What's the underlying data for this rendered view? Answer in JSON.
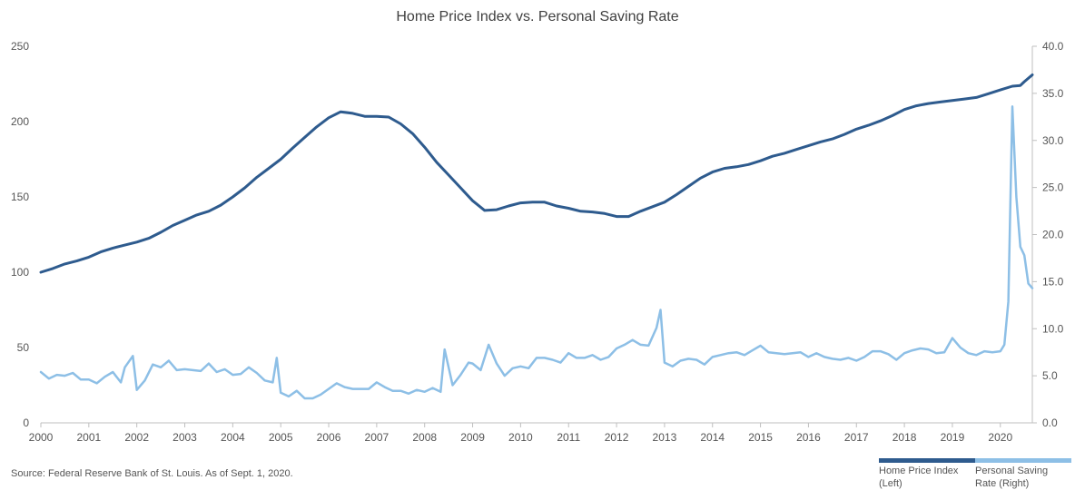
{
  "chart_data": {
    "type": "line",
    "title": "Home Price Index vs. Personal Saving Rate",
    "source": "Source: Federal Reserve Bank of St. Louis. As of Sept. 1, 2020.",
    "x_ticks": [
      "2000",
      "2001",
      "2002",
      "2003",
      "2004",
      "2005",
      "2006",
      "2007",
      "2008",
      "2009",
      "2010",
      "2011",
      "2012",
      "2013",
      "2014",
      "2015",
      "2016",
      "2017",
      "2018",
      "2019",
      "2020"
    ],
    "x_range": [
      "2000-01",
      "2020-09"
    ],
    "y_left": {
      "ticks": [
        "0",
        "50",
        "100",
        "150",
        "200",
        "250"
      ],
      "range": [
        0,
        250
      ]
    },
    "y_right": {
      "ticks": [
        "0.0",
        "5.0",
        "10.0",
        "15.0",
        "20.0",
        "25.0",
        "30.0",
        "35.0",
        "40.0"
      ],
      "range": [
        0,
        40
      ]
    },
    "grid": false,
    "legend_position": "bottom-right",
    "series": [
      {
        "name": "Home Price Index (Left)",
        "axis": "left",
        "color": "#2E5B8E",
        "points": [
          [
            "2000-01",
            100.0
          ],
          [
            "2000-04",
            102.5
          ],
          [
            "2000-07",
            105.5
          ],
          [
            "2000-10",
            107.5
          ],
          [
            "2001-01",
            110.0
          ],
          [
            "2001-04",
            113.5
          ],
          [
            "2001-07",
            116.0
          ],
          [
            "2001-10",
            118.0
          ],
          [
            "2002-01",
            120.0
          ],
          [
            "2002-04",
            122.5
          ],
          [
            "2002-07",
            126.5
          ],
          [
            "2002-10",
            131.0
          ],
          [
            "2003-01",
            134.5
          ],
          [
            "2003-04",
            138.0
          ],
          [
            "2003-07",
            140.5
          ],
          [
            "2003-10",
            144.5
          ],
          [
            "2004-01",
            150.0
          ],
          [
            "2004-04",
            156.0
          ],
          [
            "2004-07",
            163.0
          ],
          [
            "2004-10",
            169.0
          ],
          [
            "2005-01",
            175.0
          ],
          [
            "2005-04",
            182.5
          ],
          [
            "2005-07",
            189.5
          ],
          [
            "2005-10",
            196.5
          ],
          [
            "2006-01",
            202.5
          ],
          [
            "2006-04",
            206.5
          ],
          [
            "2006-07",
            205.5
          ],
          [
            "2006-10",
            203.5
          ],
          [
            "2007-01",
            203.5
          ],
          [
            "2007-04",
            203.0
          ],
          [
            "2007-07",
            198.5
          ],
          [
            "2007-10",
            192.0
          ],
          [
            "2008-01",
            183.0
          ],
          [
            "2008-04",
            173.0
          ],
          [
            "2008-07",
            164.5
          ],
          [
            "2008-10",
            156.0
          ],
          [
            "2009-01",
            147.5
          ],
          [
            "2009-04",
            141.0
          ],
          [
            "2009-07",
            141.5
          ],
          [
            "2009-10",
            144.0
          ],
          [
            "2010-01",
            146.0
          ],
          [
            "2010-04",
            146.5
          ],
          [
            "2010-07",
            146.5
          ],
          [
            "2010-10",
            144.0
          ],
          [
            "2011-01",
            142.5
          ],
          [
            "2011-04",
            140.5
          ],
          [
            "2011-07",
            140.0
          ],
          [
            "2011-10",
            139.0
          ],
          [
            "2012-01",
            137.0
          ],
          [
            "2012-04",
            137.0
          ],
          [
            "2012-07",
            140.5
          ],
          [
            "2012-10",
            143.5
          ],
          [
            "2013-01",
            146.5
          ],
          [
            "2013-04",
            151.5
          ],
          [
            "2013-07",
            157.0
          ],
          [
            "2013-10",
            162.5
          ],
          [
            "2014-01",
            166.5
          ],
          [
            "2014-04",
            169.0
          ],
          [
            "2014-07",
            170.0
          ],
          [
            "2014-10",
            171.5
          ],
          [
            "2015-01",
            174.0
          ],
          [
            "2015-04",
            177.0
          ],
          [
            "2015-07",
            179.0
          ],
          [
            "2015-10",
            181.5
          ],
          [
            "2016-01",
            184.0
          ],
          [
            "2016-04",
            186.5
          ],
          [
            "2016-07",
            188.5
          ],
          [
            "2016-10",
            191.5
          ],
          [
            "2017-01",
            195.0
          ],
          [
            "2017-04",
            197.5
          ],
          [
            "2017-07",
            200.5
          ],
          [
            "2017-10",
            204.0
          ],
          [
            "2018-01",
            208.0
          ],
          [
            "2018-04",
            210.5
          ],
          [
            "2018-07",
            212.0
          ],
          [
            "2018-10",
            213.0
          ],
          [
            "2019-01",
            214.0
          ],
          [
            "2019-04",
            215.0
          ],
          [
            "2019-07",
            216.0
          ],
          [
            "2019-10",
            218.5
          ],
          [
            "2020-01",
            221.0
          ],
          [
            "2020-04",
            223.5
          ],
          [
            "2020-06",
            224.0
          ],
          [
            "2020-07",
            226.5
          ],
          [
            "2020-09",
            231.0
          ]
        ]
      },
      {
        "name": "Personal Saving Rate (Right)",
        "axis": "right",
        "color": "#8DBFE6",
        "points": [
          [
            "2000-01",
            5.4
          ],
          [
            "2000-03",
            4.7
          ],
          [
            "2000-05",
            5.1
          ],
          [
            "2000-07",
            5.0
          ],
          [
            "2000-09",
            5.3
          ],
          [
            "2000-11",
            4.6
          ],
          [
            "2001-01",
            4.6
          ],
          [
            "2001-03",
            4.2
          ],
          [
            "2001-05",
            4.9
          ],
          [
            "2001-07",
            5.4
          ],
          [
            "2001-09",
            4.3
          ],
          [
            "2001-10",
            5.9
          ],
          [
            "2001-12",
            7.1
          ],
          [
            "2002-01",
            3.5
          ],
          [
            "2002-03",
            4.5
          ],
          [
            "2002-05",
            6.2
          ],
          [
            "2002-07",
            5.9
          ],
          [
            "2002-09",
            6.6
          ],
          [
            "2002-11",
            5.6
          ],
          [
            "2003-01",
            5.7
          ],
          [
            "2003-03",
            5.6
          ],
          [
            "2003-05",
            5.5
          ],
          [
            "2003-07",
            6.3
          ],
          [
            "2003-09",
            5.4
          ],
          [
            "2003-11",
            5.7
          ],
          [
            "2004-01",
            5.1
          ],
          [
            "2004-03",
            5.2
          ],
          [
            "2004-05",
            5.9
          ],
          [
            "2004-07",
            5.3
          ],
          [
            "2004-09",
            4.5
          ],
          [
            "2004-11",
            4.3
          ],
          [
            "2004-12",
            6.9
          ],
          [
            "2005-01",
            3.2
          ],
          [
            "2005-03",
            2.8
          ],
          [
            "2005-05",
            3.4
          ],
          [
            "2005-07",
            2.6
          ],
          [
            "2005-09",
            2.6
          ],
          [
            "2005-11",
            3.0
          ],
          [
            "2006-01",
            3.6
          ],
          [
            "2006-03",
            4.2
          ],
          [
            "2006-05",
            3.8
          ],
          [
            "2006-07",
            3.6
          ],
          [
            "2006-09",
            3.6
          ],
          [
            "2006-11",
            3.6
          ],
          [
            "2007-01",
            4.3
          ],
          [
            "2007-03",
            3.8
          ],
          [
            "2007-05",
            3.4
          ],
          [
            "2007-07",
            3.4
          ],
          [
            "2007-09",
            3.1
          ],
          [
            "2007-11",
            3.5
          ],
          [
            "2008-01",
            3.3
          ],
          [
            "2008-03",
            3.7
          ],
          [
            "2008-05",
            3.3
          ],
          [
            "2008-06",
            7.8
          ],
          [
            "2008-08",
            4.0
          ],
          [
            "2008-10",
            5.1
          ],
          [
            "2008-12",
            6.4
          ],
          [
            "2009-01",
            6.3
          ],
          [
            "2009-03",
            5.6
          ],
          [
            "2009-05",
            8.3
          ],
          [
            "2009-07",
            6.3
          ],
          [
            "2009-09",
            5.0
          ],
          [
            "2009-11",
            5.8
          ],
          [
            "2010-01",
            6.0
          ],
          [
            "2010-03",
            5.8
          ],
          [
            "2010-05",
            6.9
          ],
          [
            "2010-07",
            6.9
          ],
          [
            "2010-09",
            6.7
          ],
          [
            "2010-11",
            6.4
          ],
          [
            "2011-01",
            7.4
          ],
          [
            "2011-03",
            6.9
          ],
          [
            "2011-05",
            6.9
          ],
          [
            "2011-07",
            7.2
          ],
          [
            "2011-09",
            6.7
          ],
          [
            "2011-11",
            7.0
          ],
          [
            "2012-01",
            7.9
          ],
          [
            "2012-03",
            8.3
          ],
          [
            "2012-05",
            8.8
          ],
          [
            "2012-07",
            8.3
          ],
          [
            "2012-09",
            8.2
          ],
          [
            "2012-11",
            10.1
          ],
          [
            "2012-12",
            12.0
          ],
          [
            "2013-01",
            6.4
          ],
          [
            "2013-03",
            6.0
          ],
          [
            "2013-05",
            6.6
          ],
          [
            "2013-07",
            6.8
          ],
          [
            "2013-09",
            6.7
          ],
          [
            "2013-11",
            6.2
          ],
          [
            "2014-01",
            7.0
          ],
          [
            "2014-03",
            7.2
          ],
          [
            "2014-05",
            7.4
          ],
          [
            "2014-07",
            7.5
          ],
          [
            "2014-09",
            7.2
          ],
          [
            "2014-11",
            7.7
          ],
          [
            "2015-01",
            8.2
          ],
          [
            "2015-03",
            7.5
          ],
          [
            "2015-05",
            7.4
          ],
          [
            "2015-07",
            7.3
          ],
          [
            "2015-09",
            7.4
          ],
          [
            "2015-11",
            7.5
          ],
          [
            "2016-01",
            7.0
          ],
          [
            "2016-03",
            7.4
          ],
          [
            "2016-05",
            7.0
          ],
          [
            "2016-07",
            6.8
          ],
          [
            "2016-09",
            6.7
          ],
          [
            "2016-11",
            6.9
          ],
          [
            "2017-01",
            6.6
          ],
          [
            "2017-03",
            7.0
          ],
          [
            "2017-05",
            7.6
          ],
          [
            "2017-07",
            7.6
          ],
          [
            "2017-09",
            7.3
          ],
          [
            "2017-11",
            6.7
          ],
          [
            "2018-01",
            7.4
          ],
          [
            "2018-03",
            7.7
          ],
          [
            "2018-05",
            7.9
          ],
          [
            "2018-07",
            7.8
          ],
          [
            "2018-09",
            7.4
          ],
          [
            "2018-11",
            7.5
          ],
          [
            "2019-01",
            9.0
          ],
          [
            "2019-03",
            8.0
          ],
          [
            "2019-05",
            7.4
          ],
          [
            "2019-07",
            7.2
          ],
          [
            "2019-09",
            7.6
          ],
          [
            "2019-11",
            7.5
          ],
          [
            "2020-01",
            7.6
          ],
          [
            "2020-02",
            8.3
          ],
          [
            "2020-03",
            12.9
          ],
          [
            "2020-04",
            33.6
          ],
          [
            "2020-05",
            24.0
          ],
          [
            "2020-06",
            18.7
          ],
          [
            "2020-07",
            17.8
          ],
          [
            "2020-08",
            14.8
          ],
          [
            "2020-09",
            14.3
          ]
        ]
      }
    ]
  },
  "legend": [
    {
      "label_line1": "Home Price Index",
      "label_line2": "(Left)",
      "color": "#2E5B8E"
    },
    {
      "label_line1": "Personal Saving",
      "label_line2": "Rate (Right)",
      "color": "#8DBFE6"
    }
  ]
}
